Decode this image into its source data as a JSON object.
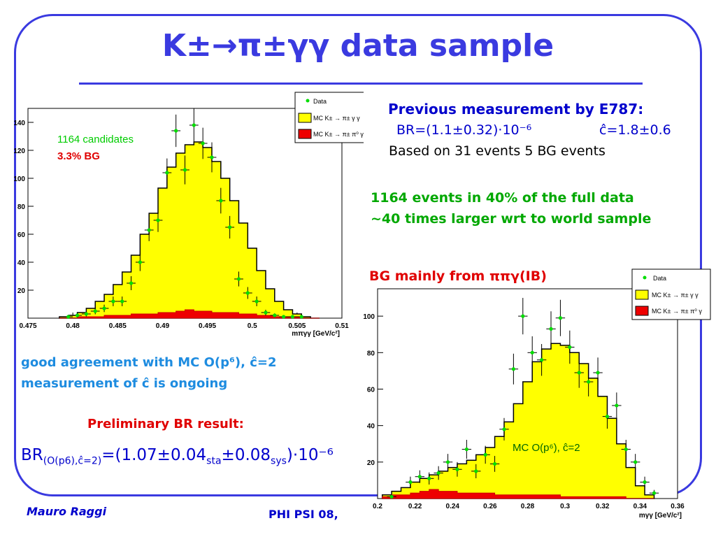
{
  "title": "K±→π±γγ data sample",
  "previous": {
    "heading": "Previous measurement by E787:",
    "br": "BR=(1.1±0.32)·10⁻⁶",
    "c": "ĉ=1.8±0.6",
    "based": "Based on 31 events 5 BG events"
  },
  "events": {
    "line1": "1164 events in 40% of the full data",
    "line2": "~40 times larger wrt to world sample"
  },
  "bg_note": "BG mainly from ππγ(IB)",
  "agreement": {
    "line1": "good agreement with MC O(p⁶), ĉ=2",
    "line2": "measurement of ĉ is ongoing"
  },
  "prelim_label": "Preliminary BR result:",
  "br_result": {
    "prefix": "BR",
    "sub": "(O(p6),ĉ=2)",
    "eq": "=(1.07±0.04",
    "sta": "sta",
    "pm2": "±0.08",
    "sys": "sys",
    "tail": ")·10⁻⁶"
  },
  "footer": {
    "author": "Mauro Raggi",
    "conf": "PHI PSI 08,"
  },
  "legend": {
    "data": "Data",
    "mc_signal": "MC K± → π± γ γ",
    "mc_bg": "MC K± → π± π⁰ γ"
  },
  "colors": {
    "accent": "#3a3ae0",
    "signal": "#ffff00",
    "bg": "#ee0000",
    "data": "#00dd00"
  },
  "chart_data": [
    {
      "type": "bar",
      "xlabel": "mπγγ [GeV/c²]",
      "xlim": [
        0.475,
        0.51
      ],
      "ylim": [
        0,
        150
      ],
      "xticks": [
        "0.475",
        "0.48",
        "0.485",
        "0.49",
        "0.495",
        "0.5",
        "0.505",
        "0.51"
      ],
      "yticks": [
        "20",
        "40",
        "60",
        "80",
        "100",
        "120",
        "140"
      ],
      "annotations": [
        "1164 candidates",
        "3.3% BG"
      ],
      "bin_width": 0.001,
      "bins_x": [
        0.479,
        0.48,
        0.481,
        0.482,
        0.483,
        0.484,
        0.485,
        0.486,
        0.487,
        0.488,
        0.489,
        0.49,
        0.491,
        0.492,
        0.493,
        0.494,
        0.495,
        0.496,
        0.497,
        0.498,
        0.499,
        0.5,
        0.501,
        0.502,
        0.503,
        0.504,
        0.505,
        0.506,
        0.507
      ],
      "series": [
        {
          "name": "MC K± → π± γ γ",
          "values": [
            1,
            2,
            4,
            7,
            12,
            17,
            24,
            33,
            45,
            60,
            75,
            93,
            108,
            118,
            124,
            126,
            122,
            112,
            100,
            84,
            68,
            50,
            34,
            21,
            12,
            6,
            3,
            1,
            0
          ]
        },
        {
          "name": "MC K± → π± π⁰ γ",
          "values": [
            0,
            0,
            1,
            1,
            1,
            2,
            2,
            2,
            3,
            3,
            3,
            4,
            4,
            5,
            6,
            5,
            5,
            4,
            4,
            4,
            3,
            3,
            2,
            2,
            1,
            1,
            1,
            0,
            0
          ]
        },
        {
          "name": "Data",
          "x": [
            0.4795,
            0.4805,
            0.4815,
            0.4825,
            0.4835,
            0.4845,
            0.4855,
            0.4865,
            0.4875,
            0.4885,
            0.4895,
            0.4905,
            0.4915,
            0.4925,
            0.4935,
            0.4945,
            0.4955,
            0.4965,
            0.4975,
            0.4985,
            0.4995,
            0.5005,
            0.5015,
            0.5025,
            0.5035,
            0.5045,
            0.5055
          ],
          "values": [
            1,
            2,
            3,
            5,
            7,
            12,
            12,
            25,
            40,
            63,
            70,
            104,
            134,
            106,
            138,
            125,
            115,
            84,
            65,
            28,
            18,
            12,
            4,
            2,
            1,
            1,
            1
          ]
        }
      ]
    },
    {
      "type": "bar",
      "xlabel": "mγγ [GeV/c²]",
      "xlim": [
        0.2,
        0.36
      ],
      "ylim": [
        0,
        115
      ],
      "xticks": [
        "0.2",
        "0.22",
        "0.24",
        "0.26",
        "0.28",
        "0.3",
        "0.32",
        "0.34",
        "0.36"
      ],
      "yticks": [
        "20",
        "40",
        "60",
        "80",
        "100"
      ],
      "annotations": [
        "MC O(p⁶), ĉ=2"
      ],
      "bin_width": 0.005,
      "bins_x": [
        0.205,
        0.21,
        0.215,
        0.22,
        0.225,
        0.23,
        0.235,
        0.24,
        0.245,
        0.25,
        0.255,
        0.26,
        0.265,
        0.27,
        0.275,
        0.28,
        0.285,
        0.29,
        0.295,
        0.3,
        0.305,
        0.31,
        0.315,
        0.32,
        0.325,
        0.33,
        0.335,
        0.34,
        0.345
      ],
      "series": [
        {
          "name": "MC K± → π± γ γ",
          "values": [
            2,
            4,
            6,
            9,
            11,
            13,
            15,
            17,
            19,
            21,
            24,
            28,
            34,
            42,
            52,
            64,
            75,
            82,
            85,
            84,
            80,
            74,
            66,
            56,
            44,
            30,
            17,
            7,
            2
          ]
        },
        {
          "name": "MC K± → π± π⁰ γ",
          "values": [
            1,
            2,
            2,
            3,
            4,
            5,
            4,
            4,
            3,
            3,
            3,
            3,
            2,
            2,
            2,
            2,
            2,
            2,
            2,
            1,
            1,
            1,
            1,
            1,
            1,
            1,
            0,
            0,
            0
          ]
        },
        {
          "name": "Data",
          "x": [
            0.2075,
            0.2175,
            0.2225,
            0.2275,
            0.2325,
            0.2375,
            0.2425,
            0.2475,
            0.2525,
            0.2575,
            0.2625,
            0.2675,
            0.2725,
            0.2775,
            0.2825,
            0.2875,
            0.2925,
            0.2975,
            0.3025,
            0.3075,
            0.3125,
            0.3175,
            0.3225,
            0.3275,
            0.3325,
            0.3375,
            0.3425,
            0.3475
          ],
          "values": [
            1,
            9,
            12,
            11,
            14,
            20,
            16,
            27,
            15,
            24,
            19,
            38,
            71,
            100,
            80,
            76,
            93,
            99,
            83,
            69,
            64,
            69,
            45,
            51,
            27,
            20,
            9,
            3
          ]
        }
      ]
    }
  ]
}
